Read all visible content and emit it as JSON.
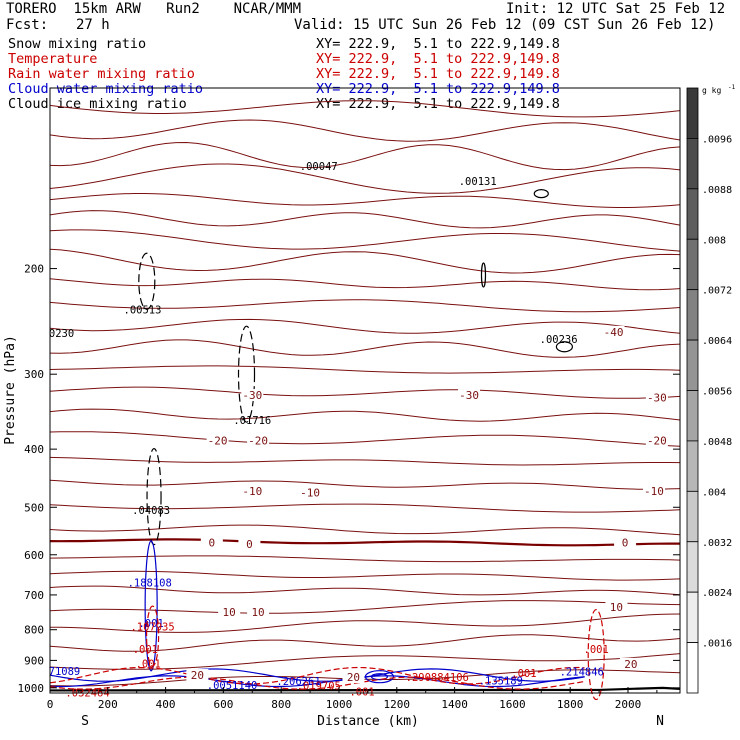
{
  "header": {
    "model": "TORERO  15km ARW   Run2    NCAR/MMM",
    "init": "Init: 12 UTC Sat 25 Feb 12",
    "fcst_label": "Fcst:",
    "fcst_value": "27 h",
    "valid": "Valid: 15 UTC Sun 26 Feb 12 (09 CST Sun 26 Feb 12)"
  },
  "legend": [
    {
      "name": "Snow mixing ratio",
      "xy": "XY= 222.9,  5.1 to 222.9,149.8",
      "color": "#000000"
    },
    {
      "name": "Temperature",
      "xy": "XY= 222.9,  5.1 to 222.9,149.8",
      "color": "#cc0000"
    },
    {
      "name": "Rain water mixing ratio",
      "xy": "XY= 222.9,  5.1 to 222.9,149.8",
      "color": "#cc0000"
    },
    {
      "name": "Cloud water mixing ratio",
      "xy": "XY= 222.9,  5.1 to 222.9,149.8",
      "color": "#0000cc"
    },
    {
      "name": "Cloud ice mixing ratio",
      "xy": "XY= 222.9,  5.1 to 222.9,149.8",
      "color": "#000000"
    }
  ],
  "chart_data": {
    "type": "contour cross-section",
    "xlabel": "Distance (km)",
    "ylabel": "Pressure (hPa)",
    "x_ticks": [
      0,
      200,
      400,
      600,
      800,
      1000,
      1200,
      1400,
      1600,
      1800,
      2000
    ],
    "y_ticks": [
      200,
      300,
      400,
      500,
      600,
      700,
      800,
      900,
      1000
    ],
    "xlim": [
      0,
      2180
    ],
    "ylim": [
      1020,
      100
    ],
    "y_scale": "log",
    "endpoint_left": "S",
    "endpoint_right": "N",
    "colorbar": {
      "unit": "g kg",
      "unit_exp": "-1",
      "ticks": [
        ".0016",
        ".0024",
        ".0032",
        ".004",
        ".0048",
        ".0056",
        ".0064",
        ".0072",
        ".008",
        ".0088",
        ".0096"
      ],
      "segments": 12,
      "low_color": "#ffffff",
      "high_color": "#3a3a3a"
    },
    "temperature_contours": {
      "color": "#7a1010",
      "zero_color": "#7a0000",
      "labels": [
        {
          "text": "-40",
          "x": 1950,
          "p": 255
        },
        {
          "text": "-30",
          "x": 700,
          "p": 325
        },
        {
          "text": "-30",
          "x": 1450,
          "p": 325
        },
        {
          "text": "-30",
          "x": 2100,
          "p": 328
        },
        {
          "text": "-20",
          "x": 580,
          "p": 387
        },
        {
          "text": "-20",
          "x": 720,
          "p": 387
        },
        {
          "text": "-20",
          "x": 2100,
          "p": 387
        },
        {
          "text": "-10",
          "x": 700,
          "p": 470
        },
        {
          "text": "-10",
          "x": 900,
          "p": 472
        },
        {
          "text": "-10",
          "x": 2090,
          "p": 470
        },
        {
          "text": "0",
          "x": 560,
          "p": 572
        },
        {
          "text": "0",
          "x": 690,
          "p": 576
        },
        {
          "text": "0",
          "x": 1990,
          "p": 572
        },
        {
          "text": "10",
          "x": 620,
          "p": 748
        },
        {
          "text": "10",
          "x": 720,
          "p": 748
        },
        {
          "text": "10",
          "x": 1960,
          "p": 733
        },
        {
          "text": "20",
          "x": 510,
          "p": 952
        },
        {
          "text": "20",
          "x": 1050,
          "p": 960
        },
        {
          "text": "20",
          "x": 2010,
          "p": 912
        }
      ]
    },
    "mixing_ratio_labels": [
      {
        "text": ".00047",
        "x": 930,
        "p": 135,
        "color": "#000000"
      },
      {
        "text": ".00131",
        "x": 1480,
        "p": 143,
        "color": "#000000"
      },
      {
        "text": ".00513",
        "x": 320,
        "p": 234,
        "color": "#000000"
      },
      {
        "text": ".00236",
        "x": 1760,
        "p": 262,
        "color": "#000000"
      },
      {
        "text": ".01716",
        "x": 700,
        "p": 358,
        "color": "#000000"
      },
      {
        "text": ".04083",
        "x": 350,
        "p": 505,
        "color": "#000000"
      },
      {
        "text": "0230",
        "x": 40,
        "p": 256,
        "color": "#000000"
      },
      {
        "text": ".188108",
        "x": 345,
        "p": 668,
        "color": "#0000cc"
      },
      {
        "text": ".001",
        "x": 350,
        "p": 780,
        "color": "#0000cc"
      },
      {
        "text": ".107935",
        "x": 355,
        "p": 790,
        "color": "#cc0000"
      },
      {
        "text": ".001",
        "x": 330,
        "p": 862,
        "color": "#cc0000"
      },
      {
        "text": ".001",
        "x": 340,
        "p": 910,
        "color": "#cc0000"
      },
      {
        "text": ".001",
        "x": 1890,
        "p": 862,
        "color": "#cc0000"
      },
      {
        "text": ".214846",
        "x": 1840,
        "p": 940,
        "color": "#0000cc"
      },
      {
        "text": ".001",
        "x": 1640,
        "p": 945,
        "color": "#cc0000"
      },
      {
        "text": "71089",
        "x": 50,
        "p": 938,
        "color": "#0000cc"
      },
      {
        "text": ".0051140",
        "x": 630,
        "p": 990,
        "color": "#0000cc"
      },
      {
        "text": ".206261",
        "x": 860,
        "p": 975,
        "color": "#0000cc"
      },
      {
        "text": ".019705",
        "x": 930,
        "p": 992,
        "color": "#cc0000"
      },
      {
        "text": ".290884106",
        "x": 1340,
        "p": 960,
        "color": "#cc0000"
      },
      {
        "text": ".135189",
        "x": 1560,
        "p": 973,
        "color": "#0000cc"
      },
      {
        "text": ".001",
        "x": 1080,
        "p": 1014,
        "color": "#cc0000"
      },
      {
        "text": ".032464",
        "x": 130,
        "p": 1018,
        "color": "#cc0000"
      }
    ]
  }
}
